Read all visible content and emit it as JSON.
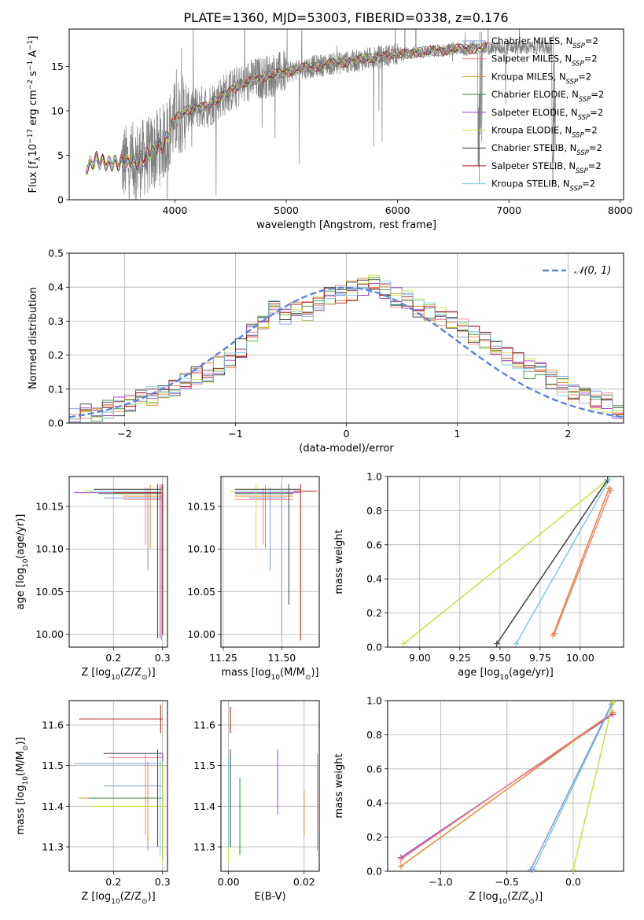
{
  "figure": {
    "title": "PLATE=1360, MJD=53003, FIBERID=0338, z=0.176"
  },
  "series_colors": {
    "chabrier_miles": "#7b9ad6",
    "salpeter_miles": "#f08080",
    "kroupa_miles": "#e8892b",
    "chabrier_elodie": "#3a8a3a",
    "salpeter_elodie": "#a040c0",
    "kroupa_elodie": "#c9e23a",
    "chabrier_stelib": "#404040",
    "salpeter_stelib": "#b01515",
    "kroupa_stelib": "#80c8e0",
    "data": "#808080",
    "normal": "#5b84d8"
  },
  "chart_data": [
    {
      "id": "spectrum",
      "type": "line",
      "xlabel": "wavelength [Angstrom, rest frame]",
      "ylabel_parts": [
        "Flux [f",
        "λ",
        "10",
        "−17",
        " erg cm",
        "−2",
        " s",
        "−1",
        " A",
        "−1",
        "]"
      ],
      "xlim": [
        3050,
        8030
      ],
      "ylim": [
        0,
        19.2
      ],
      "xticks": [
        4000,
        5000,
        6000,
        7000,
        8000
      ],
      "yticks": [
        0,
        5,
        10,
        15
      ],
      "grid": false,
      "legend_position": "top-right",
      "legend": [
        {
          "label": "Chabrier MILES, N",
          "sub": "SSP",
          "suffix": "=2",
          "color_key": "chabrier_miles"
        },
        {
          "label": "Salpeter MILES, N",
          "sub": "SSP",
          "suffix": "=2",
          "color_key": "salpeter_miles"
        },
        {
          "label": "Kroupa MILES, N",
          "sub": "SSP",
          "suffix": "=2",
          "color_key": "kroupa_miles"
        },
        {
          "label": "Chabrier ELODIE, N",
          "sub": "SSP",
          "suffix": "=2",
          "color_key": "chabrier_elodie"
        },
        {
          "label": "Salpeter ELODIE, N",
          "sub": "SSP",
          "suffix": "=2",
          "color_key": "salpeter_elodie"
        },
        {
          "label": "Kroupa ELODIE, N",
          "sub": "SSP",
          "suffix": "=2",
          "color_key": "kroupa_elodie"
        },
        {
          "label": "Chabrier STELIB, N",
          "sub": "SSP",
          "suffix": "=2",
          "color_key": "chabrier_stelib"
        },
        {
          "label": "Salpeter STELIB, N",
          "sub": "SSP",
          "suffix": "=2",
          "color_key": "salpeter_stelib"
        },
        {
          "label": "Kroupa STELIB, N",
          "sub": "SSP",
          "suffix": "=2",
          "color_key": "kroupa_stelib"
        }
      ],
      "model_continuum": {
        "x": [
          3200,
          3300,
          3400,
          3500,
          3600,
          3700,
          3800,
          3900,
          4000,
          4100,
          4200,
          4300,
          4400,
          4500,
          4600,
          4700,
          4800,
          4900,
          5000,
          5200,
          5400,
          5600,
          5800,
          6000,
          6200,
          6400,
          6600,
          6800
        ],
        "y": [
          3.5,
          4.5,
          4.2,
          4.0,
          4.2,
          4.6,
          5.2,
          6.5,
          9.0,
          10.0,
          10.4,
          10.5,
          11.5,
          12.3,
          12.9,
          13.5,
          13.8,
          14.1,
          14.4,
          14.9,
          15.3,
          15.6,
          16.0,
          16.4,
          16.6,
          16.8,
          17.0,
          17.1
        ]
      },
      "data_range": [
        3520,
        7420
      ]
    },
    {
      "id": "residuals",
      "type": "line",
      "xlabel": "(data-model)/error",
      "ylabel": "Normed distribution",
      "xlim": [
        -2.5,
        2.5
      ],
      "ylim": [
        0,
        0.5
      ],
      "xticks": [
        -2,
        -1,
        0,
        1,
        2
      ],
      "xticklabels": [
        "−2",
        "−1",
        "0",
        "1",
        "2"
      ],
      "yticks": [
        0.0,
        0.1,
        0.2,
        0.3,
        0.4,
        0.5
      ],
      "yticklabels": [
        "0.0",
        "0.1",
        "0.2",
        "0.3",
        "0.4",
        "0.5"
      ],
      "grid": true,
      "legend_position": "top-right",
      "legend_label": "𝒩(0, 1)",
      "hist_bins": [
        -2.5,
        -2.4,
        -2.3,
        -2.2,
        -2.1,
        -2.0,
        -1.9,
        -1.8,
        -1.7,
        -1.6,
        -1.5,
        -1.4,
        -1.3,
        -1.2,
        -1.1,
        -1.0,
        -0.9,
        -0.8,
        -0.7,
        -0.6,
        -0.5,
        -0.4,
        -0.3,
        -0.2,
        -0.1,
        0.0,
        0.1,
        0.2,
        0.3,
        0.4,
        0.5,
        0.6,
        0.7,
        0.8,
        0.9,
        1.0,
        1.1,
        1.2,
        1.3,
        1.4,
        1.5,
        1.6,
        1.7,
        1.8,
        1.9,
        2.0,
        2.1,
        2.2,
        2.3,
        2.4
      ],
      "hist_mean": [
        0.02,
        0.03,
        0.035,
        0.04,
        0.05,
        0.06,
        0.07,
        0.08,
        0.09,
        0.11,
        0.12,
        0.14,
        0.15,
        0.17,
        0.19,
        0.22,
        0.27,
        0.3,
        0.34,
        0.31,
        0.34,
        0.33,
        0.35,
        0.37,
        0.38,
        0.39,
        0.4,
        0.41,
        0.39,
        0.37,
        0.36,
        0.34,
        0.33,
        0.31,
        0.3,
        0.28,
        0.26,
        0.24,
        0.22,
        0.2,
        0.18,
        0.16,
        0.15,
        0.13,
        0.11,
        0.1,
        0.08,
        0.07,
        0.06,
        0.04
      ]
    },
    {
      "id": "age-vs-Z",
      "type": "scatter",
      "xlabel_parts": [
        "Z [log",
        "10",
        "(Z/Z",
        "⊙",
        ")]"
      ],
      "ylabel_parts": [
        "age  [log",
        "10",
        "(age/yr)]"
      ],
      "xlim": [
        0.11,
        0.31
      ],
      "ylim": [
        9.985,
        10.185
      ],
      "xticks": [
        0.2,
        0.3
      ],
      "yticks": [
        10.0,
        10.05,
        10.1,
        10.15
      ],
      "yticklabels": [
        "10.00",
        "10.05",
        "10.10",
        "10.15"
      ],
      "grid": true
    },
    {
      "id": "age-vs-mass",
      "type": "scatter",
      "xlabel_parts": [
        "mass [log",
        "10",
        "(M/M",
        "⊙",
        ")]"
      ],
      "xlim": [
        11.24,
        11.66
      ],
      "ylim": [
        9.985,
        10.185
      ],
      "xticks": [
        11.25,
        11.5
      ],
      "xticklabels": [
        "11.25",
        "11.50"
      ],
      "yticks": [
        10.0,
        10.05,
        10.1,
        10.15
      ],
      "yticklabels": [
        "10.00",
        "10.05",
        "10.10",
        "10.15"
      ],
      "grid": true
    },
    {
      "id": "weight-vs-age",
      "type": "line",
      "xlabel_parts": [
        "age  [log",
        "10",
        "(age/yr)]"
      ],
      "ylabel": "mass weight",
      "xlim": [
        8.8,
        10.27
      ],
      "ylim": [
        0.0,
        1.0
      ],
      "xticks": [
        9.0,
        9.25,
        9.5,
        9.75,
        10.0
      ],
      "xticklabels": [
        "9.00",
        "9.25",
        "9.50",
        "9.75",
        "10.00"
      ],
      "yticks": [
        0.0,
        0.2,
        0.4,
        0.6,
        0.8,
        1.0
      ],
      "yticklabels": [
        "0.0",
        "0.2",
        "0.4",
        "0.6",
        "0.8",
        "1.0"
      ],
      "grid": true,
      "series": [
        {
          "color_key": "kroupa_elodie",
          "x": [
            8.9,
            10.17
          ],
          "y": [
            0.02,
            0.98
          ]
        },
        {
          "color_key": "chabrier_stelib",
          "x": [
            9.48,
            10.17
          ],
          "y": [
            0.02,
            0.98
          ]
        },
        {
          "color_key": "kroupa_stelib",
          "x": [
            9.6,
            10.18
          ],
          "y": [
            0.02,
            0.98
          ]
        },
        {
          "color_key": "salpeter_miles",
          "x": [
            9.84,
            10.19
          ],
          "y": [
            0.08,
            0.92
          ]
        },
        {
          "color_key": "kroupa_miles",
          "x": [
            9.83,
            10.18
          ],
          "y": [
            0.07,
            0.93
          ]
        }
      ]
    },
    {
      "id": "mass-vs-Z",
      "type": "scatter",
      "xlabel_parts": [
        "Z [log",
        "10",
        "(Z/Z",
        "⊙",
        ")]"
      ],
      "ylabel_parts": [
        "mass [log",
        "10",
        "(M/M",
        "⊙",
        ")]"
      ],
      "xlim": [
        0.11,
        0.31
      ],
      "ylim": [
        11.24,
        11.66
      ],
      "xticks": [
        0.2,
        0.3
      ],
      "yticks": [
        11.3,
        11.4,
        11.5,
        11.6
      ],
      "yticklabels": [
        "11.3",
        "11.4",
        "11.5",
        "11.6"
      ],
      "grid": true
    },
    {
      "id": "mass-vs-EBV",
      "type": "scatter",
      "xlabel": "E(B-V)",
      "xlim": [
        -0.002,
        0.024
      ],
      "ylim": [
        11.24,
        11.66
      ],
      "xticks": [
        0.0,
        0.02
      ],
      "xticklabels": [
        "0.00",
        "0.02"
      ],
      "yticks": [
        11.3,
        11.4,
        11.5,
        11.6
      ],
      "yticklabels": [
        "11.3",
        "11.4",
        "11.5",
        "11.6"
      ],
      "grid": true
    },
    {
      "id": "weight-vs-Z",
      "type": "line",
      "xlabel_parts": [
        "Z [log",
        "10",
        "(Z/Z",
        "⊙",
        ")]"
      ],
      "ylabel": "mass weight",
      "xlim": [
        -1.4,
        0.38
      ],
      "ylim": [
        0.0,
        1.0
      ],
      "xticks": [
        -1.0,
        -0.5,
        0.0
      ],
      "xticklabels": [
        "−1.0",
        "−0.5",
        "0.0"
      ],
      "yticks": [
        0.0,
        0.2,
        0.4,
        0.6,
        0.8,
        1.0
      ],
      "yticklabels": [
        "0.0",
        "0.2",
        "0.4",
        "0.6",
        "0.8",
        "1.0"
      ],
      "grid": true,
      "series": [
        {
          "color_key": "salpeter_elodie",
          "x": [
            -1.3,
            0.3
          ],
          "y": [
            0.08,
            0.92
          ]
        },
        {
          "color_key": "salpeter_miles",
          "x": [
            -1.3,
            0.3
          ],
          "y": [
            0.07,
            0.93
          ]
        },
        {
          "color_key": "kroupa_miles",
          "x": [
            -1.3,
            0.3
          ],
          "y": [
            0.03,
            0.93
          ]
        },
        {
          "color_key": "kroupa_stelib",
          "x": [
            -0.3,
            0.3
          ],
          "y": [
            0.01,
            0.99
          ]
        },
        {
          "color_key": "chabrier_miles",
          "x": [
            -0.32,
            0.29
          ],
          "y": [
            0.01,
            0.98
          ]
        },
        {
          "color_key": "kroupa_elodie",
          "x": [
            0.0,
            0.3
          ],
          "y": [
            0.01,
            0.99
          ]
        }
      ]
    }
  ]
}
